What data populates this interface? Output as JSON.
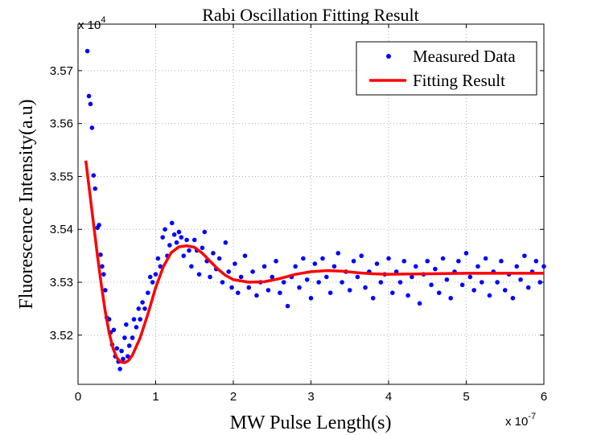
{
  "chart_data": {
    "type": "scatter",
    "title": "Rabi Oscillation Fitting Result",
    "x_label": "MW Pulse Length(s)",
    "y_label": "Fluorescence Intensity(a.u)",
    "x_multiplier": {
      "base": "x 10",
      "exp": "-7"
    },
    "y_multiplier": {
      "base": "x 10",
      "exp": "4"
    },
    "xlim": [
      0,
      6
    ],
    "xticks": [
      0,
      1,
      2,
      3,
      4,
      5,
      6
    ],
    "ylim": [
      3.5107,
      3.5788
    ],
    "yticks": [
      3.52,
      3.53,
      3.54,
      3.55,
      3.56,
      3.57
    ],
    "grid": true,
    "legend": "top-right",
    "series": [
      {
        "name": "Measured Data",
        "type": "scatter",
        "color": "#0000ff",
        "x": [
          0.12,
          0.14,
          0.16,
          0.18,
          0.2,
          0.22,
          0.25,
          0.27,
          0.29,
          0.31,
          0.33,
          0.35,
          0.37,
          0.4,
          0.42,
          0.44,
          0.46,
          0.48,
          0.5,
          0.52,
          0.54,
          0.56,
          0.58,
          0.6,
          0.62,
          0.64,
          0.66,
          0.7,
          0.72,
          0.75,
          0.78,
          0.8,
          0.83,
          0.86,
          0.9,
          0.93,
          0.96,
          1.0,
          1.03,
          1.06,
          1.09,
          1.12,
          1.15,
          1.18,
          1.21,
          1.24,
          1.27,
          1.3,
          1.33,
          1.36,
          1.4,
          1.43,
          1.46,
          1.5,
          1.53,
          1.56,
          1.6,
          1.63,
          1.66,
          1.7,
          1.74,
          1.78,
          1.82,
          1.86,
          1.9,
          1.94,
          1.98,
          2.02,
          2.06,
          2.1,
          2.15,
          2.2,
          2.25,
          2.3,
          2.35,
          2.4,
          2.45,
          2.5,
          2.55,
          2.6,
          2.65,
          2.7,
          2.75,
          2.8,
          2.85,
          2.9,
          2.95,
          3.0,
          3.05,
          3.1,
          3.15,
          3.2,
          3.25,
          3.3,
          3.35,
          3.4,
          3.45,
          3.5,
          3.55,
          3.6,
          3.65,
          3.7,
          3.75,
          3.8,
          3.85,
          3.9,
          3.95,
          4.0,
          4.05,
          4.1,
          4.15,
          4.2,
          4.25,
          4.3,
          4.35,
          4.4,
          4.45,
          4.5,
          4.55,
          4.6,
          4.65,
          4.7,
          4.75,
          4.8,
          4.85,
          4.9,
          4.95,
          5.0,
          5.05,
          5.1,
          5.15,
          5.2,
          5.25,
          5.3,
          5.35,
          5.4,
          5.45,
          5.5,
          5.55,
          5.6,
          5.65,
          5.7,
          5.75,
          5.8,
          5.85,
          5.9,
          5.95,
          6.0
        ],
        "values": [
          3.5737,
          3.5652,
          3.5637,
          3.5592,
          3.5502,
          3.5477,
          3.5403,
          3.5408,
          3.5352,
          3.533,
          3.5315,
          3.5285,
          3.5233,
          3.523,
          3.5205,
          3.5182,
          3.521,
          3.516,
          3.5175,
          3.515,
          3.5136,
          3.517,
          3.5155,
          3.5195,
          3.522,
          3.516,
          3.518,
          3.5195,
          3.523,
          3.5215,
          3.525,
          3.523,
          3.5262,
          3.525,
          3.528,
          3.531,
          3.53,
          3.5315,
          3.5345,
          3.533,
          3.5385,
          3.54,
          3.535,
          3.537,
          3.5412,
          3.539,
          3.5375,
          3.5395,
          3.5385,
          3.535,
          3.538,
          3.536,
          3.533,
          3.538,
          3.536,
          3.5315,
          3.5365,
          3.5395,
          3.534,
          3.531,
          3.5355,
          3.5325,
          3.5345,
          3.53,
          3.5375,
          3.532,
          3.529,
          3.5335,
          3.528,
          3.531,
          3.535,
          3.529,
          3.532,
          3.5275,
          3.53,
          3.533,
          3.5285,
          3.531,
          3.534,
          3.528,
          3.53,
          3.5255,
          3.531,
          3.533,
          3.529,
          3.5345,
          3.5305,
          3.527,
          3.5335,
          3.53,
          3.5345,
          3.531,
          3.528,
          3.533,
          3.5355,
          3.53,
          3.532,
          3.5285,
          3.534,
          3.531,
          3.535,
          3.529,
          3.532,
          3.527,
          3.5335,
          3.53,
          3.5315,
          3.5345,
          3.528,
          3.532,
          3.53,
          3.534,
          3.5275,
          3.531,
          3.533,
          3.526,
          3.5315,
          3.534,
          3.5295,
          3.5325,
          3.528,
          3.5345,
          3.5305,
          3.527,
          3.532,
          3.534,
          3.5295,
          3.5355,
          3.531,
          3.5285,
          3.533,
          3.53,
          3.5345,
          3.5275,
          3.532,
          3.53,
          3.534,
          3.5285,
          3.5315,
          3.527,
          3.533,
          3.5305,
          3.535,
          3.529,
          3.532,
          3.534,
          3.53,
          3.533
        ]
      },
      {
        "name": "Fitting Result",
        "type": "line",
        "color": "#ff0000",
        "x": [
          0.1,
          0.15,
          0.2,
          0.25,
          0.3,
          0.35,
          0.4,
          0.45,
          0.5,
          0.55,
          0.6,
          0.65,
          0.7,
          0.8,
          0.9,
          1.0,
          1.1,
          1.2,
          1.3,
          1.4,
          1.5,
          1.6,
          1.7,
          1.8,
          1.9,
          2.0,
          2.2,
          2.4,
          2.6,
          2.8,
          3.0,
          3.2,
          3.4,
          3.6,
          3.8,
          4.0,
          4.5,
          5.0,
          5.5,
          6.0
        ],
        "values": [
          3.553,
          3.547,
          3.541,
          3.535,
          3.5295,
          3.5245,
          3.5205,
          3.5175,
          3.5157,
          3.5149,
          3.5148,
          3.5152,
          3.5162,
          3.5195,
          3.524,
          3.529,
          3.533,
          3.5356,
          3.5367,
          3.5369,
          3.5366,
          3.5355,
          3.534,
          3.5325,
          3.5313,
          3.5305,
          3.53,
          3.5301,
          3.5307,
          3.5315,
          3.532,
          3.5322,
          3.5321,
          3.5318,
          3.5316,
          3.5315,
          3.5316,
          3.5317,
          3.5317,
          3.5317
        ]
      }
    ]
  }
}
